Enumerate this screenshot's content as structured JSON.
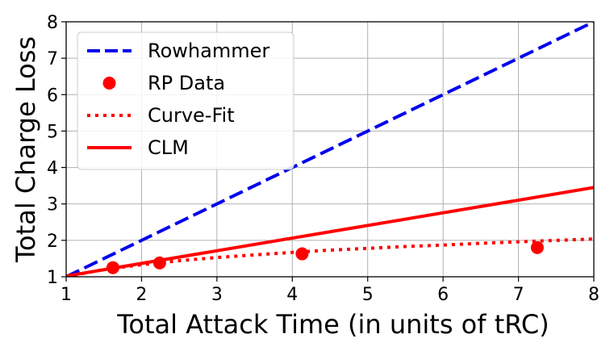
{
  "chart_data": {
    "type": "line",
    "title": "",
    "xlabel": "Total Attack Time (in units of tRC)",
    "ylabel": "Total Charge Loss",
    "xlim": [
      1,
      8
    ],
    "ylim": [
      1,
      8
    ],
    "xticks": [
      1,
      2,
      3,
      4,
      5,
      6,
      7,
      8
    ],
    "yticks": [
      1,
      2,
      3,
      4,
      5,
      6,
      7,
      8
    ],
    "grid": true,
    "legend_position": "top-left",
    "series": [
      {
        "name": "Rowhammer",
        "kind": "line",
        "style": "dashed",
        "color": "#0000ee",
        "x": [
          1,
          8
        ],
        "y": [
          1,
          8
        ]
      },
      {
        "name": "RP Data",
        "kind": "scatter",
        "style": "marker",
        "color": "#ff0000",
        "x": [
          1.62,
          2.24,
          4.13,
          7.25
        ],
        "y": [
          1.25,
          1.38,
          1.63,
          1.8
        ]
      },
      {
        "name": "Curve-Fit",
        "kind": "line",
        "style": "dotted",
        "color": "#ff0000",
        "x": [
          1,
          1.5,
          2,
          2.5,
          3,
          3.5,
          4,
          4.5,
          5,
          5.5,
          6,
          6.5,
          7,
          7.5,
          8
        ],
        "y": [
          1.0,
          1.2,
          1.33,
          1.44,
          1.53,
          1.6,
          1.67,
          1.73,
          1.78,
          1.83,
          1.87,
          1.92,
          1.96,
          2.0,
          2.04
        ]
      },
      {
        "name": "CLM",
        "kind": "line",
        "style": "solid",
        "color": "#ff0000",
        "x": [
          1,
          8
        ],
        "y": [
          1.02,
          3.45
        ]
      }
    ]
  }
}
